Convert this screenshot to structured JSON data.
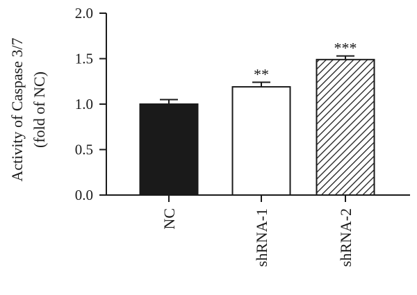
{
  "chart_data": {
    "type": "bar",
    "categories": [
      "NC",
      "shRNA-1",
      "shRNA-2"
    ],
    "values": [
      1.0,
      1.19,
      1.49
    ],
    "errors": [
      0.05,
      0.05,
      0.04
    ],
    "significance": [
      "",
      "**",
      "***"
    ],
    "fills": [
      "solid",
      "open",
      "hatched"
    ],
    "title": "",
    "xlabel": "",
    "ylabel": [
      "Activity of Caspase 3/7",
      "(fold of NC)"
    ],
    "ylim": [
      0,
      2.0
    ],
    "yticks": [
      0.0,
      0.5,
      1.0,
      1.5,
      2.0
    ],
    "ytick_labels": [
      "0.0",
      "0.5",
      "1.0",
      "1.5",
      "2.0"
    ],
    "grid": false,
    "legend": "none",
    "colors": {
      "ink": "#1a1a1a",
      "bar_solid": "#1a1a1a",
      "bar_open": "#ffffff"
    }
  }
}
